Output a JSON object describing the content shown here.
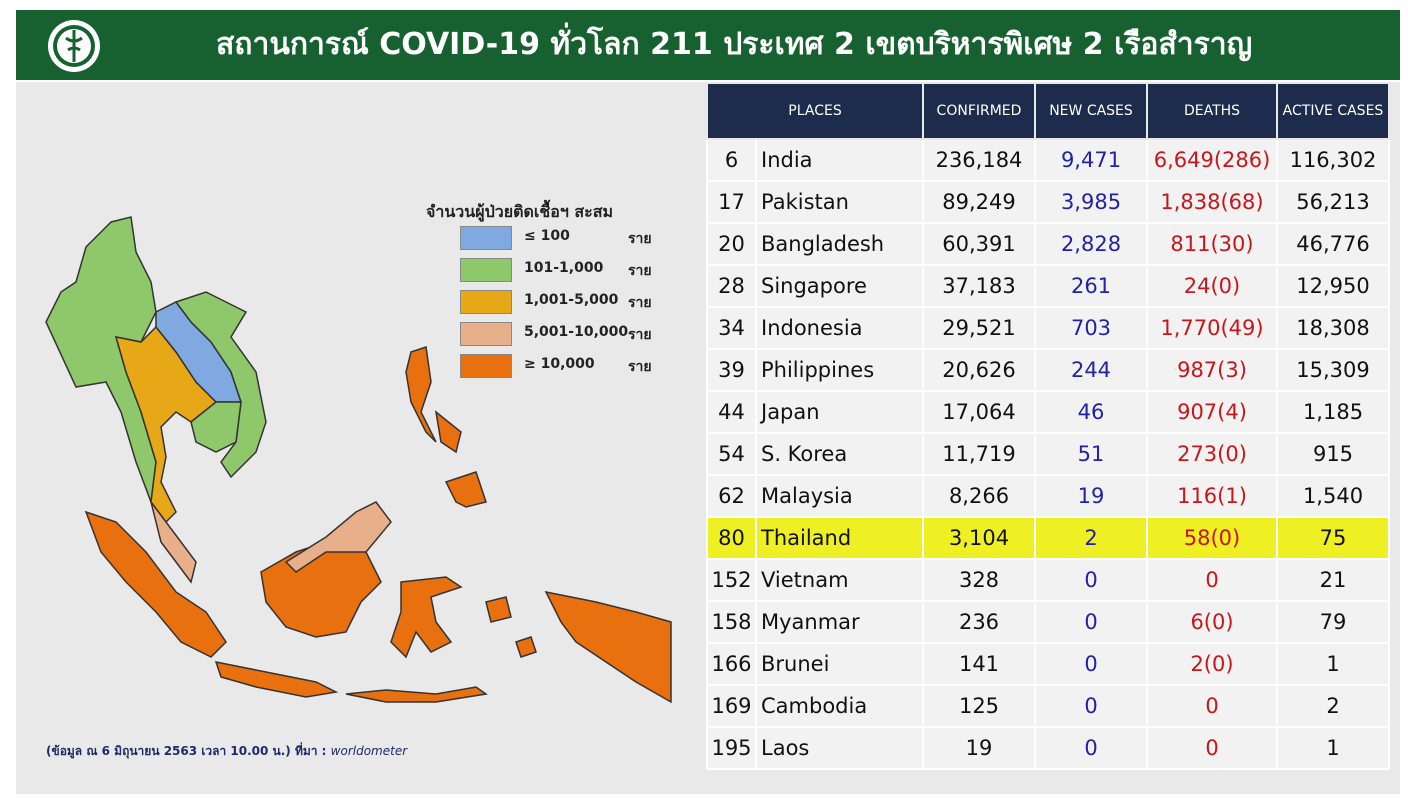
{
  "header": {
    "title": "สถานการณ์ COVID-19 ทั่วโลก 211 ประเทศ 2 เขตบริหารพิเศษ 2 เรือสำราญ"
  },
  "legend": {
    "title": "จำนวนผู้ป่วยติดเชื้อฯ สะสม",
    "items": [
      {
        "range": "≤ 100",
        "unit": "ราย"
      },
      {
        "range": "101-1,000",
        "unit": "ราย"
      },
      {
        "range": "1,001-5,000",
        "unit": "ราย"
      },
      {
        "range": "5,001-10,000",
        "unit": "ราย"
      },
      {
        "range": "≥ 10,000",
        "unit": "ราย"
      }
    ]
  },
  "note": {
    "text": "(ข้อมูล ณ 6 มิถุนายน 2563 เวลา 10.00 น.) ที่มา : ",
    "source": "worldometer"
  },
  "table": {
    "columns": [
      "PLACES",
      "CONFIRMED",
      "NEW  CASES",
      "DEATHS",
      "ACTIVE CASES"
    ],
    "rows": [
      [
        "6",
        "India",
        "236,184",
        "9,471",
        "6,649(286)",
        "116,302"
      ],
      [
        "17",
        "Pakistan",
        "89,249",
        "3,985",
        "1,838(68)",
        "56,213"
      ],
      [
        "20",
        "Bangladesh",
        "60,391",
        "2,828",
        "811(30)",
        "46,776"
      ],
      [
        "28",
        "Singapore",
        "37,183",
        "261",
        "24(0)",
        "12,950"
      ],
      [
        "34",
        "Indonesia",
        "29,521",
        "703",
        "1,770(49)",
        "18,308"
      ],
      [
        "39",
        "Philippines",
        "20,626",
        "244",
        "987(3)",
        "15,309"
      ],
      [
        "44",
        "Japan",
        "17,064",
        "46",
        "907(4)",
        "1,185"
      ],
      [
        "54",
        "S. Korea",
        "11,719",
        "51",
        "273(0)",
        "915"
      ],
      [
        "62",
        "Malaysia",
        "8,266",
        "19",
        "116(1)",
        "1,540"
      ],
      [
        "80",
        "Thailand",
        "3,104",
        "2",
        "58(0)",
        "75"
      ],
      [
        "152",
        "Vietnam",
        "328",
        "0",
        "0",
        "21"
      ],
      [
        "158",
        "Myanmar",
        "236",
        "0",
        "6(0)",
        "79"
      ],
      [
        "166",
        "Brunei",
        "141",
        "0",
        "2(0)",
        "1"
      ],
      [
        "169",
        "Cambodia",
        "125",
        "0",
        "0",
        "2"
      ],
      [
        "195",
        "Laos",
        "19",
        "0",
        "0",
        "1"
      ]
    ]
  }
}
